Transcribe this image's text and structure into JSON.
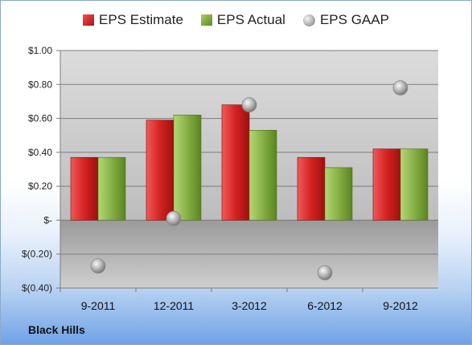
{
  "chart_data": {
    "type": "bar",
    "categories": [
      "9-2011",
      "12-2011",
      "3-2012",
      "6-2012",
      "9-2012"
    ],
    "series": [
      {
        "name": "EPS Estimate",
        "kind": "bar",
        "color": "#d42a2a",
        "values": [
          0.37,
          0.59,
          0.68,
          0.37,
          0.42
        ]
      },
      {
        "name": "EPS Actual",
        "kind": "bar",
        "color": "#7faa3c",
        "values": [
          0.37,
          0.62,
          0.53,
          0.31,
          0.42
        ]
      },
      {
        "name": "EPS GAAP",
        "kind": "marker",
        "color": "#b0b0b0",
        "values": [
          -0.27,
          0.01,
          0.68,
          -0.31,
          0.78
        ]
      }
    ],
    "ylim": [
      -0.4,
      1.0
    ],
    "yticks": [
      1.0,
      0.8,
      0.6,
      0.4,
      0.2,
      0,
      -0.2,
      -0.4
    ],
    "ytick_labels": [
      "$1.00",
      "$0.80",
      "$0.60",
      "$0.40",
      "$0.20",
      "$-",
      "$(0.20)",
      "$(0.40)"
    ],
    "legend_position": "top",
    "grid": true
  },
  "company": "Black Hills"
}
